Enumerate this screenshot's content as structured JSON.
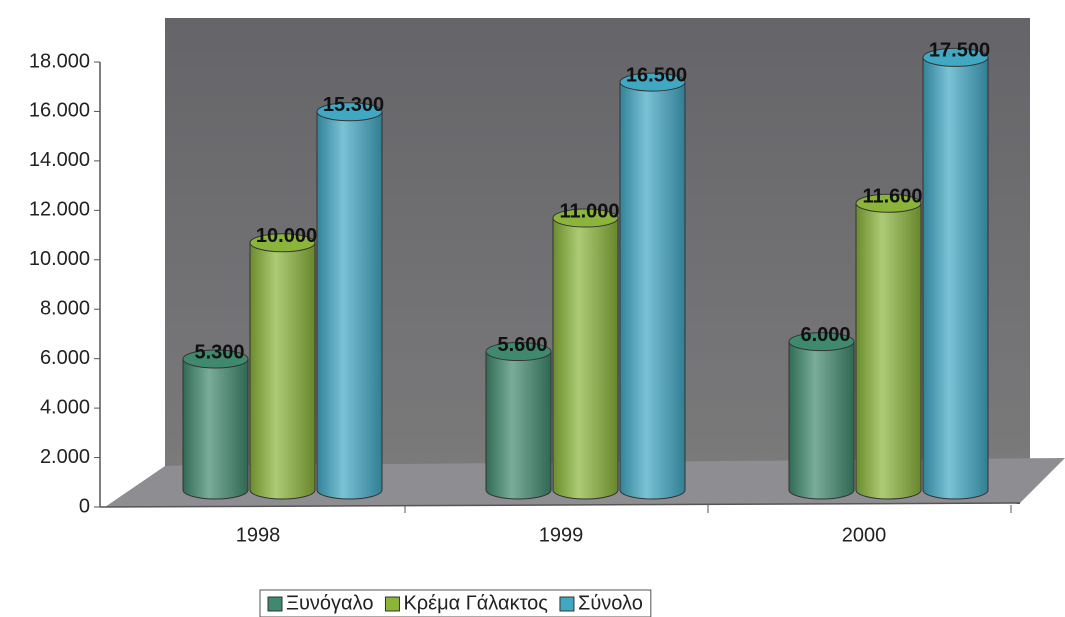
{
  "chart_data": {
    "type": "bar3d",
    "categories": [
      "1998",
      "1999",
      "2000"
    ],
    "series": [
      {
        "name": "Ξυνόγαλο",
        "color": "#3f8a6e",
        "values": [
          5300,
          5600,
          6000
        ],
        "value_labels": [
          "5.300",
          "5.600",
          "6.000"
        ]
      },
      {
        "name": "Κρέμα Γάλακτος",
        "color": "#8ab43a",
        "values": [
          10000,
          11000,
          11600
        ],
        "value_labels": [
          "10.000",
          "11.000",
          "11.600"
        ]
      },
      {
        "name": "Σύνολο",
        "color": "#41a8c4",
        "values": [
          15300,
          16500,
          17500
        ],
        "value_labels": [
          "15.300",
          "16.500",
          "17.500"
        ]
      }
    ],
    "ylim": [
      0,
      18000
    ],
    "yticks": [
      0,
      {
        "value": 2000,
        "label": "2.000"
      },
      {
        "value": 4000,
        "label": "4.000"
      },
      {
        "value": 6000,
        "label": "6.000"
      },
      {
        "value": 8000,
        "label": "8.000"
      },
      {
        "value": 10000,
        "label": "10.000"
      },
      {
        "value": 12000,
        "label": "12.000"
      },
      {
        "value": 14000,
        "label": "14.000"
      },
      {
        "value": 16000,
        "label": "16.000"
      },
      {
        "value": 18000,
        "label": "18.000"
      }
    ],
    "legend": "bottom"
  }
}
